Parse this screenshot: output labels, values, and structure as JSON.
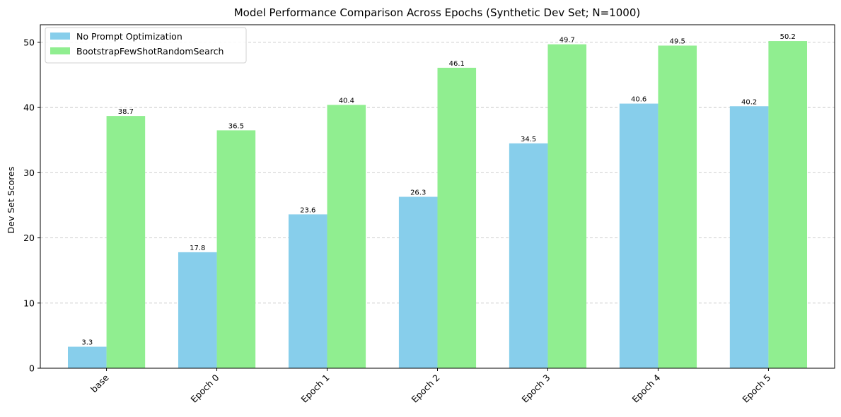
{
  "chart_data": {
    "type": "bar",
    "title": "Model Performance Comparison Across Epochs (Synthetic Dev Set; N=1000)",
    "xlabel": "",
    "ylabel": "Dev Set Scores",
    "categories": [
      "base",
      "Epoch 0",
      "Epoch 1",
      "Epoch 2",
      "Epoch 3",
      "Epoch 4",
      "Epoch 5"
    ],
    "series": [
      {
        "name": "No Prompt Optimization",
        "color": "#87ceeb",
        "values": [
          3.3,
          17.8,
          23.6,
          26.3,
          34.5,
          40.6,
          40.2
        ],
        "labels": [
          "3.3",
          "17.8",
          "23.6",
          "26.3",
          "34.5",
          "40.6",
          "40.2"
        ]
      },
      {
        "name": "BootstrapFewShotRandomSearch",
        "color": "#90ee90",
        "values": [
          38.7,
          36.5,
          40.4,
          46.1,
          49.7,
          49.5,
          50.2
        ],
        "labels": [
          "38.7",
          "36.5",
          "40.4",
          "46.1",
          "49.7",
          "49.5",
          "50.2"
        ]
      }
    ],
    "ylim": [
      0,
      52.7
    ],
    "yticks": [
      0,
      10,
      20,
      30,
      40,
      50
    ],
    "ytick_labels": [
      "0",
      "10",
      "20",
      "30",
      "40",
      "50"
    ],
    "grid": "y-dashed",
    "legend_position": "top-left"
  }
}
